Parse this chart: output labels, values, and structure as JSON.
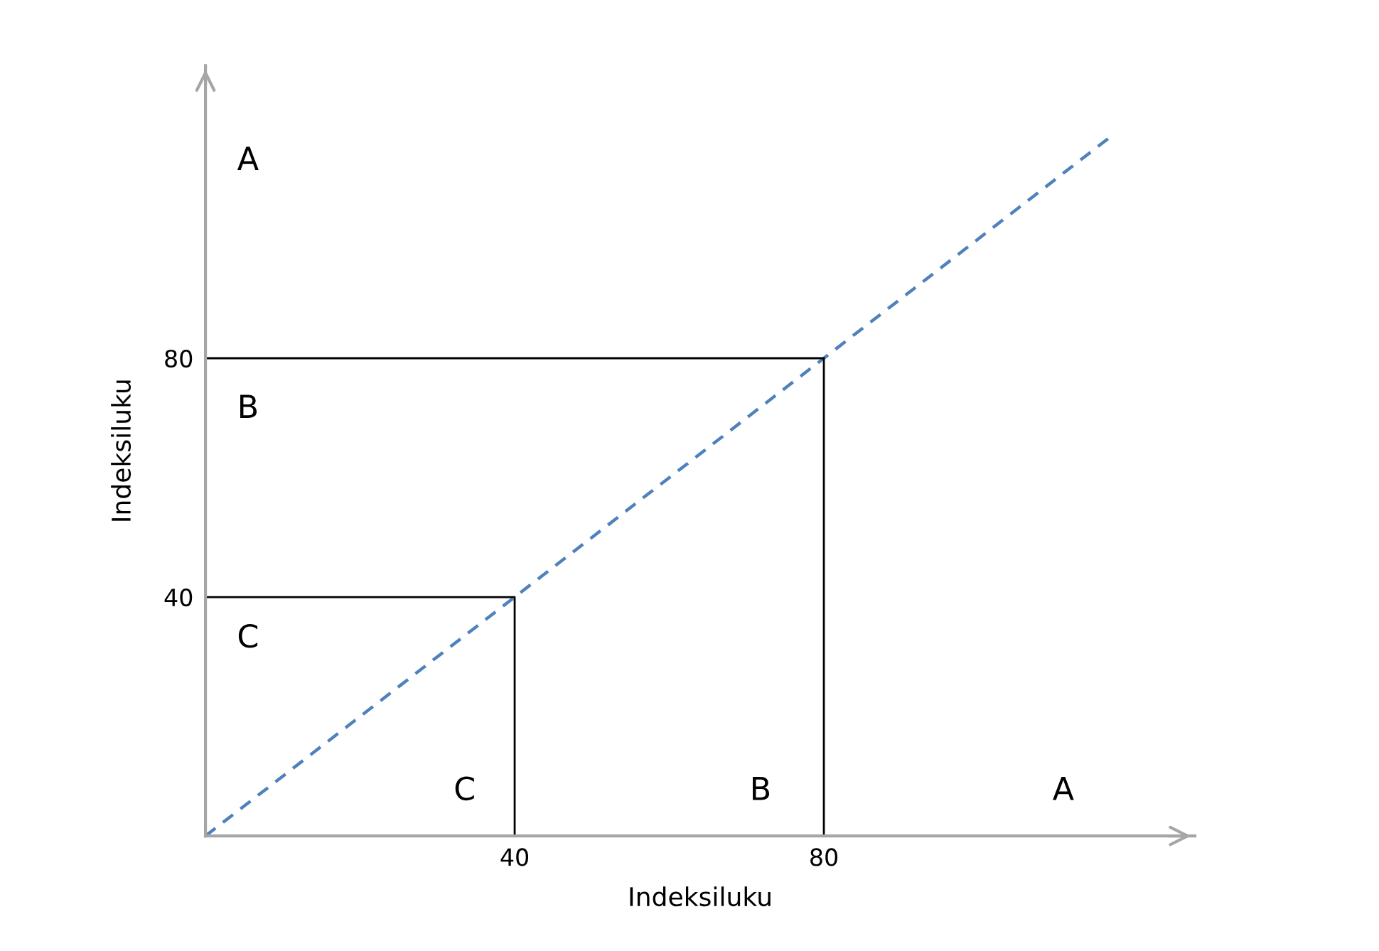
{
  "chart_data": {
    "type": "line",
    "xlabel": "Indeksiluku",
    "ylabel": "Indeksiluku",
    "xlim": [
      0,
      128
    ],
    "ylim": [
      0,
      129
    ],
    "xticks": [
      40,
      80
    ],
    "yticks": [
      40,
      80
    ],
    "grid": false,
    "legend": false,
    "marker": "none",
    "series": [
      {
        "x": [
          0,
          117
        ],
        "values": [
          0,
          117
        ],
        "color": "#4f81bd",
        "line_style": "dashed"
      },
      {
        "x": [
          0,
          40,
          40
        ],
        "values": [
          40,
          40,
          0
        ],
        "color": "#000000",
        "line_style": "solid"
      },
      {
        "x": [
          0,
          80,
          80
        ],
        "values": [
          80,
          80,
          0
        ],
        "color": "#000000",
        "line_style": "solid"
      }
    ],
    "annotations": [
      "A",
      "B",
      "C",
      "C",
      "B",
      "A"
    ]
  }
}
